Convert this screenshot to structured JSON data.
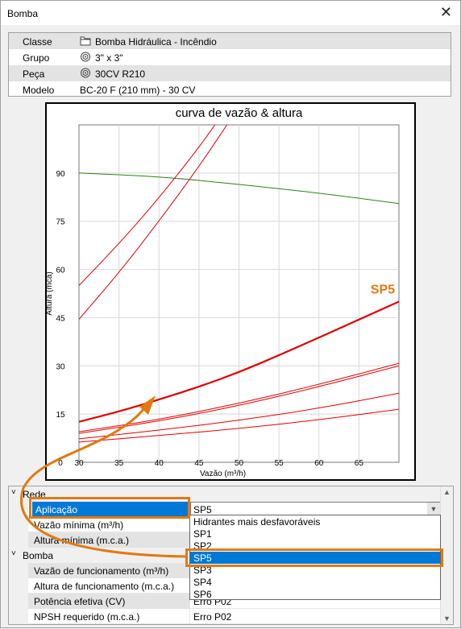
{
  "window": {
    "title": "Bomba"
  },
  "info": [
    {
      "label": "Classe",
      "value": "Bomba Hidráulica - Incêndio",
      "icon": "folder-icon"
    },
    {
      "label": "Grupo",
      "value": "3\" x 3\"",
      "icon": "target-icon"
    },
    {
      "label": "Peça",
      "value": "30CV R210",
      "icon": "target-icon"
    },
    {
      "label": "Modelo",
      "value": "BC-20 F (210 mm) - 30 CV",
      "icon": ""
    }
  ],
  "colors": {
    "pump_curve": "#2f7d1f",
    "system_curve": "#e00000",
    "highlight": "#e07a10",
    "selection": "#0078d7"
  },
  "chart_data": {
    "type": "line",
    "title": "curva de vazão & altura",
    "xlabel": "Vazão (m³/h)",
    "ylabel": "Altura (mca)",
    "xlim": [
      30,
      70
    ],
    "ylim": [
      0,
      105
    ],
    "xticks": [
      30,
      35,
      40,
      45,
      50,
      55,
      60,
      65
    ],
    "yticks": [
      0,
      15,
      30,
      45,
      60,
      75,
      90
    ],
    "grid": true,
    "annotation": "SP5",
    "series": [
      {
        "color": "#2f7d1f",
        "width": 1,
        "points": [
          [
            30,
            90
          ],
          [
            40,
            88.9
          ],
          [
            50,
            86.5
          ],
          [
            60,
            83.8
          ],
          [
            70,
            80.5
          ]
        ]
      },
      {
        "color": "#e00000",
        "width": 1,
        "points": [
          [
            30,
            55
          ],
          [
            35,
            68
          ],
          [
            40,
            82.2
          ],
          [
            45,
            98
          ],
          [
            47,
            105
          ]
        ]
      },
      {
        "color": "#e00000",
        "width": 1,
        "points": [
          [
            30,
            44.5
          ],
          [
            35,
            59
          ],
          [
            40,
            75
          ],
          [
            45,
            92
          ],
          [
            48.5,
            105
          ]
        ]
      },
      {
        "color": "#e00000",
        "width": 2.2,
        "points": [
          [
            30,
            12.6
          ],
          [
            35,
            15.8
          ],
          [
            40,
            19.5
          ],
          [
            45,
            23.5
          ],
          [
            50,
            28
          ],
          [
            55,
            33.3
          ],
          [
            60,
            38.8
          ],
          [
            65,
            44.4
          ],
          [
            70,
            50
          ]
        ]
      },
      {
        "color": "#e00000",
        "width": 1,
        "points": [
          [
            30,
            9.5
          ],
          [
            40,
            13.3
          ],
          [
            50,
            18.3
          ],
          [
            60,
            24.2
          ],
          [
            70,
            30.8
          ]
        ]
      },
      {
        "color": "#e00000",
        "width": 1,
        "points": [
          [
            30,
            9
          ],
          [
            40,
            12.8
          ],
          [
            50,
            17.6
          ],
          [
            60,
            23.5
          ],
          [
            70,
            30
          ]
        ]
      },
      {
        "color": "#e00000",
        "width": 1,
        "points": [
          [
            30,
            7.3
          ],
          [
            40,
            10
          ],
          [
            50,
            13
          ],
          [
            60,
            16.8
          ],
          [
            70,
            21.5
          ]
        ]
      },
      {
        "color": "#e00000",
        "width": 1,
        "points": [
          [
            30,
            6.3
          ],
          [
            40,
            8.3
          ],
          [
            50,
            10.5
          ],
          [
            60,
            13.2
          ],
          [
            70,
            16.5
          ]
        ]
      }
    ]
  },
  "props": {
    "rede": "Rede",
    "aplicacao_label": "Aplicação",
    "aplicacao_value": "SP5",
    "vazao_min_label": "Vazão mínima (m³/h)",
    "altura_min_label": "Altura mínima (m.c.a.)",
    "bomba": "Bomba",
    "vazao_func_label": "Vazão de funcionamento (m³/h)",
    "altura_func_label": "Altura de funcionamento (m.c.a.)",
    "potencia_label": "Potência efetiva (CV)",
    "potencia_value": "Erro P02",
    "npsh_label": "NPSH requerido (m.c.a.)",
    "npsh_value": "Erro P02"
  },
  "dropdown": {
    "options": [
      "Hidrantes mais desfavoráveis",
      "SP1",
      "SP2",
      "SP5",
      "SP3",
      "SP4",
      "SP6"
    ],
    "selected": "SP5"
  }
}
